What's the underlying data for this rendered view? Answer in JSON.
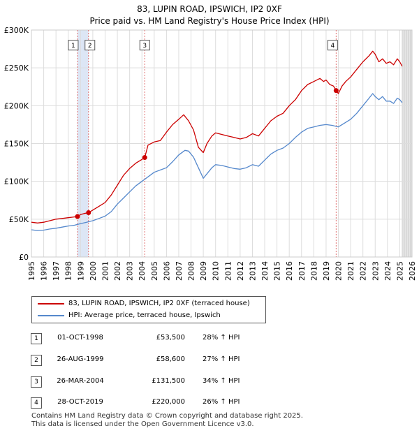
{
  "chart_data": {
    "type": "line",
    "title": "83, LUPIN ROAD, IPSWICH, IP2 0XF",
    "subtitle": "Price paid vs. HM Land Registry's House Price Index (HPI)",
    "xlim": [
      1995,
      2026
    ],
    "ylim": [
      0,
      300000
    ],
    "y_ticks": [
      0,
      50000,
      100000,
      150000,
      200000,
      250000,
      300000
    ],
    "y_tick_labels": [
      "£0",
      "£50K",
      "£100K",
      "£150K",
      "£200K",
      "£250K",
      "£300K"
    ],
    "x_ticks": [
      1995,
      1996,
      1997,
      1998,
      1999,
      2000,
      2001,
      2002,
      2003,
      2004,
      2005,
      2006,
      2007,
      2008,
      2009,
      2010,
      2011,
      2012,
      2013,
      2014,
      2015,
      2016,
      2017,
      2018,
      2019,
      2020,
      2021,
      2022,
      2023,
      2024,
      2025,
      2026
    ],
    "x_tick_labels": [
      "1995",
      "1996",
      "1997",
      "1998",
      "1999",
      "2000",
      "2001",
      "2002",
      "2003",
      "2004",
      "2005",
      "2006",
      "2007",
      "2008",
      "2009",
      "2010",
      "2011",
      "2012",
      "2013",
      "2014",
      "2015",
      "2016",
      "2017",
      "2018",
      "2019",
      "2020",
      "2021",
      "2022",
      "2023",
      "2024",
      "2025",
      "2026"
    ],
    "grid": true,
    "legend_position": "below",
    "series": [
      {
        "name": "83, LUPIN ROAD, IPSWICH, IP2 0XF (terraced house)",
        "color": "#cc0000",
        "x": [
          1995.0,
          1995.5,
          1996.0,
          1996.5,
          1997.0,
          1997.5,
          1998.0,
          1998.5,
          1998.75,
          1999.0,
          1999.3,
          1999.65,
          2000.0,
          2000.5,
          2001.0,
          2001.5,
          2002.0,
          2002.5,
          2003.0,
          2003.5,
          2004.0,
          2004.23,
          2004.5,
          2005.0,
          2005.5,
          2006.0,
          2006.5,
          2007.0,
          2007.4,
          2007.8,
          2008.2,
          2008.6,
          2009.0,
          2009.3,
          2009.7,
          2010.0,
          2010.5,
          2011.0,
          2011.5,
          2012.0,
          2012.5,
          2013.0,
          2013.5,
          2014.0,
          2014.5,
          2015.0,
          2015.5,
          2016.0,
          2016.5,
          2017.0,
          2017.5,
          2018.0,
          2018.5,
          2018.8,
          2019.0,
          2019.3,
          2019.6,
          2019.82,
          2020.0,
          2020.3,
          2020.6,
          2021.0,
          2021.5,
          2022.0,
          2022.5,
          2022.8,
          2023.0,
          2023.3,
          2023.6,
          2023.9,
          2024.2,
          2024.5,
          2024.8,
          2025.0,
          2025.2
        ],
        "values": [
          46000,
          45000,
          46000,
          48000,
          50000,
          51000,
          52000,
          53000,
          53500,
          56000,
          57500,
          58600,
          62000,
          67000,
          72000,
          82000,
          95000,
          108000,
          117000,
          124000,
          129000,
          131500,
          148000,
          152000,
          154000,
          165000,
          175000,
          182000,
          188000,
          180000,
          168000,
          145000,
          138000,
          150000,
          160000,
          164000,
          162000,
          160000,
          158000,
          156000,
          158000,
          163000,
          160000,
          170000,
          180000,
          186000,
          190000,
          200000,
          208000,
          220000,
          228000,
          232000,
          236000,
          232000,
          234000,
          228000,
          226000,
          220000,
          216000,
          226000,
          232000,
          238000,
          248000,
          258000,
          266000,
          272000,
          268000,
          258000,
          262000,
          256000,
          258000,
          254000,
          262000,
          258000,
          252000
        ]
      },
      {
        "name": "HPI: Average price, terraced house, Ipswich",
        "color": "#5588cc",
        "x": [
          1995.0,
          1995.5,
          1996.0,
          1996.5,
          1997.0,
          1997.5,
          1998.0,
          1998.5,
          1999.0,
          1999.5,
          2000.0,
          2000.5,
          2001.0,
          2001.5,
          2002.0,
          2002.5,
          2003.0,
          2003.5,
          2004.0,
          2004.5,
          2005.0,
          2005.5,
          2006.0,
          2006.5,
          2007.0,
          2007.5,
          2007.8,
          2008.2,
          2008.6,
          2009.0,
          2009.3,
          2009.7,
          2010.0,
          2010.5,
          2011.0,
          2011.5,
          2012.0,
          2012.5,
          2013.0,
          2013.5,
          2014.0,
          2014.5,
          2015.0,
          2015.5,
          2016.0,
          2016.5,
          2017.0,
          2017.5,
          2018.0,
          2018.5,
          2019.0,
          2019.5,
          2020.0,
          2020.5,
          2021.0,
          2021.5,
          2022.0,
          2022.5,
          2022.8,
          2023.0,
          2023.3,
          2023.6,
          2023.9,
          2024.2,
          2024.5,
          2024.8,
          2025.0,
          2025.2
        ],
        "values": [
          36000,
          35000,
          35500,
          37000,
          38000,
          39500,
          41000,
          42000,
          44000,
          46000,
          48000,
          51000,
          54000,
          60000,
          70000,
          78000,
          86000,
          94000,
          100000,
          106000,
          112000,
          115000,
          118000,
          126000,
          135000,
          141000,
          140000,
          132000,
          118000,
          104000,
          110000,
          118000,
          122000,
          121000,
          119000,
          117000,
          116000,
          118000,
          122000,
          120000,
          128000,
          136000,
          141000,
          144000,
          150000,
          158000,
          165000,
          170000,
          172000,
          174000,
          175000,
          174000,
          172000,
          177000,
          182000,
          190000,
          200000,
          210000,
          216000,
          212000,
          208000,
          212000,
          206000,
          206000,
          203000,
          210000,
          208000,
          204000
        ]
      }
    ],
    "annotations": [
      {
        "label": "1",
        "x": 1998.75,
        "value": 53500
      },
      {
        "label": "2",
        "x": 1999.65,
        "value": 58600
      },
      {
        "label": "3",
        "x": 2004.23,
        "value": 131500
      },
      {
        "label": "4",
        "x": 2019.82,
        "value": 220000
      }
    ]
  },
  "legend": {
    "series_1": "83, LUPIN ROAD, IPSWICH, IP2 0XF (terraced house)",
    "series_2": "HPI: Average price, terraced house, Ipswich"
  },
  "transactions": [
    {
      "num": "1",
      "date": "01-OCT-1998",
      "price": "£53,500",
      "hpi": "28% ↑ HPI"
    },
    {
      "num": "2",
      "date": "26-AUG-1999",
      "price": "£58,600",
      "hpi": "27% ↑ HPI"
    },
    {
      "num": "3",
      "date": "26-MAR-2004",
      "price": "£131,500",
      "hpi": "34% ↑ HPI"
    },
    {
      "num": "4",
      "date": "28-OCT-2019",
      "price": "£220,000",
      "hpi": "26% ↑ HPI"
    }
  ],
  "footer": {
    "line1": "Contains HM Land Registry data © Crown copyright and database right 2025.",
    "line2": "This data is licensed under the Open Government Licence v3.0."
  },
  "colors": {
    "price_line": "#cc0000",
    "hpi_line": "#5588cc",
    "grid": "#dddddd",
    "shade": "#dde6f5"
  }
}
